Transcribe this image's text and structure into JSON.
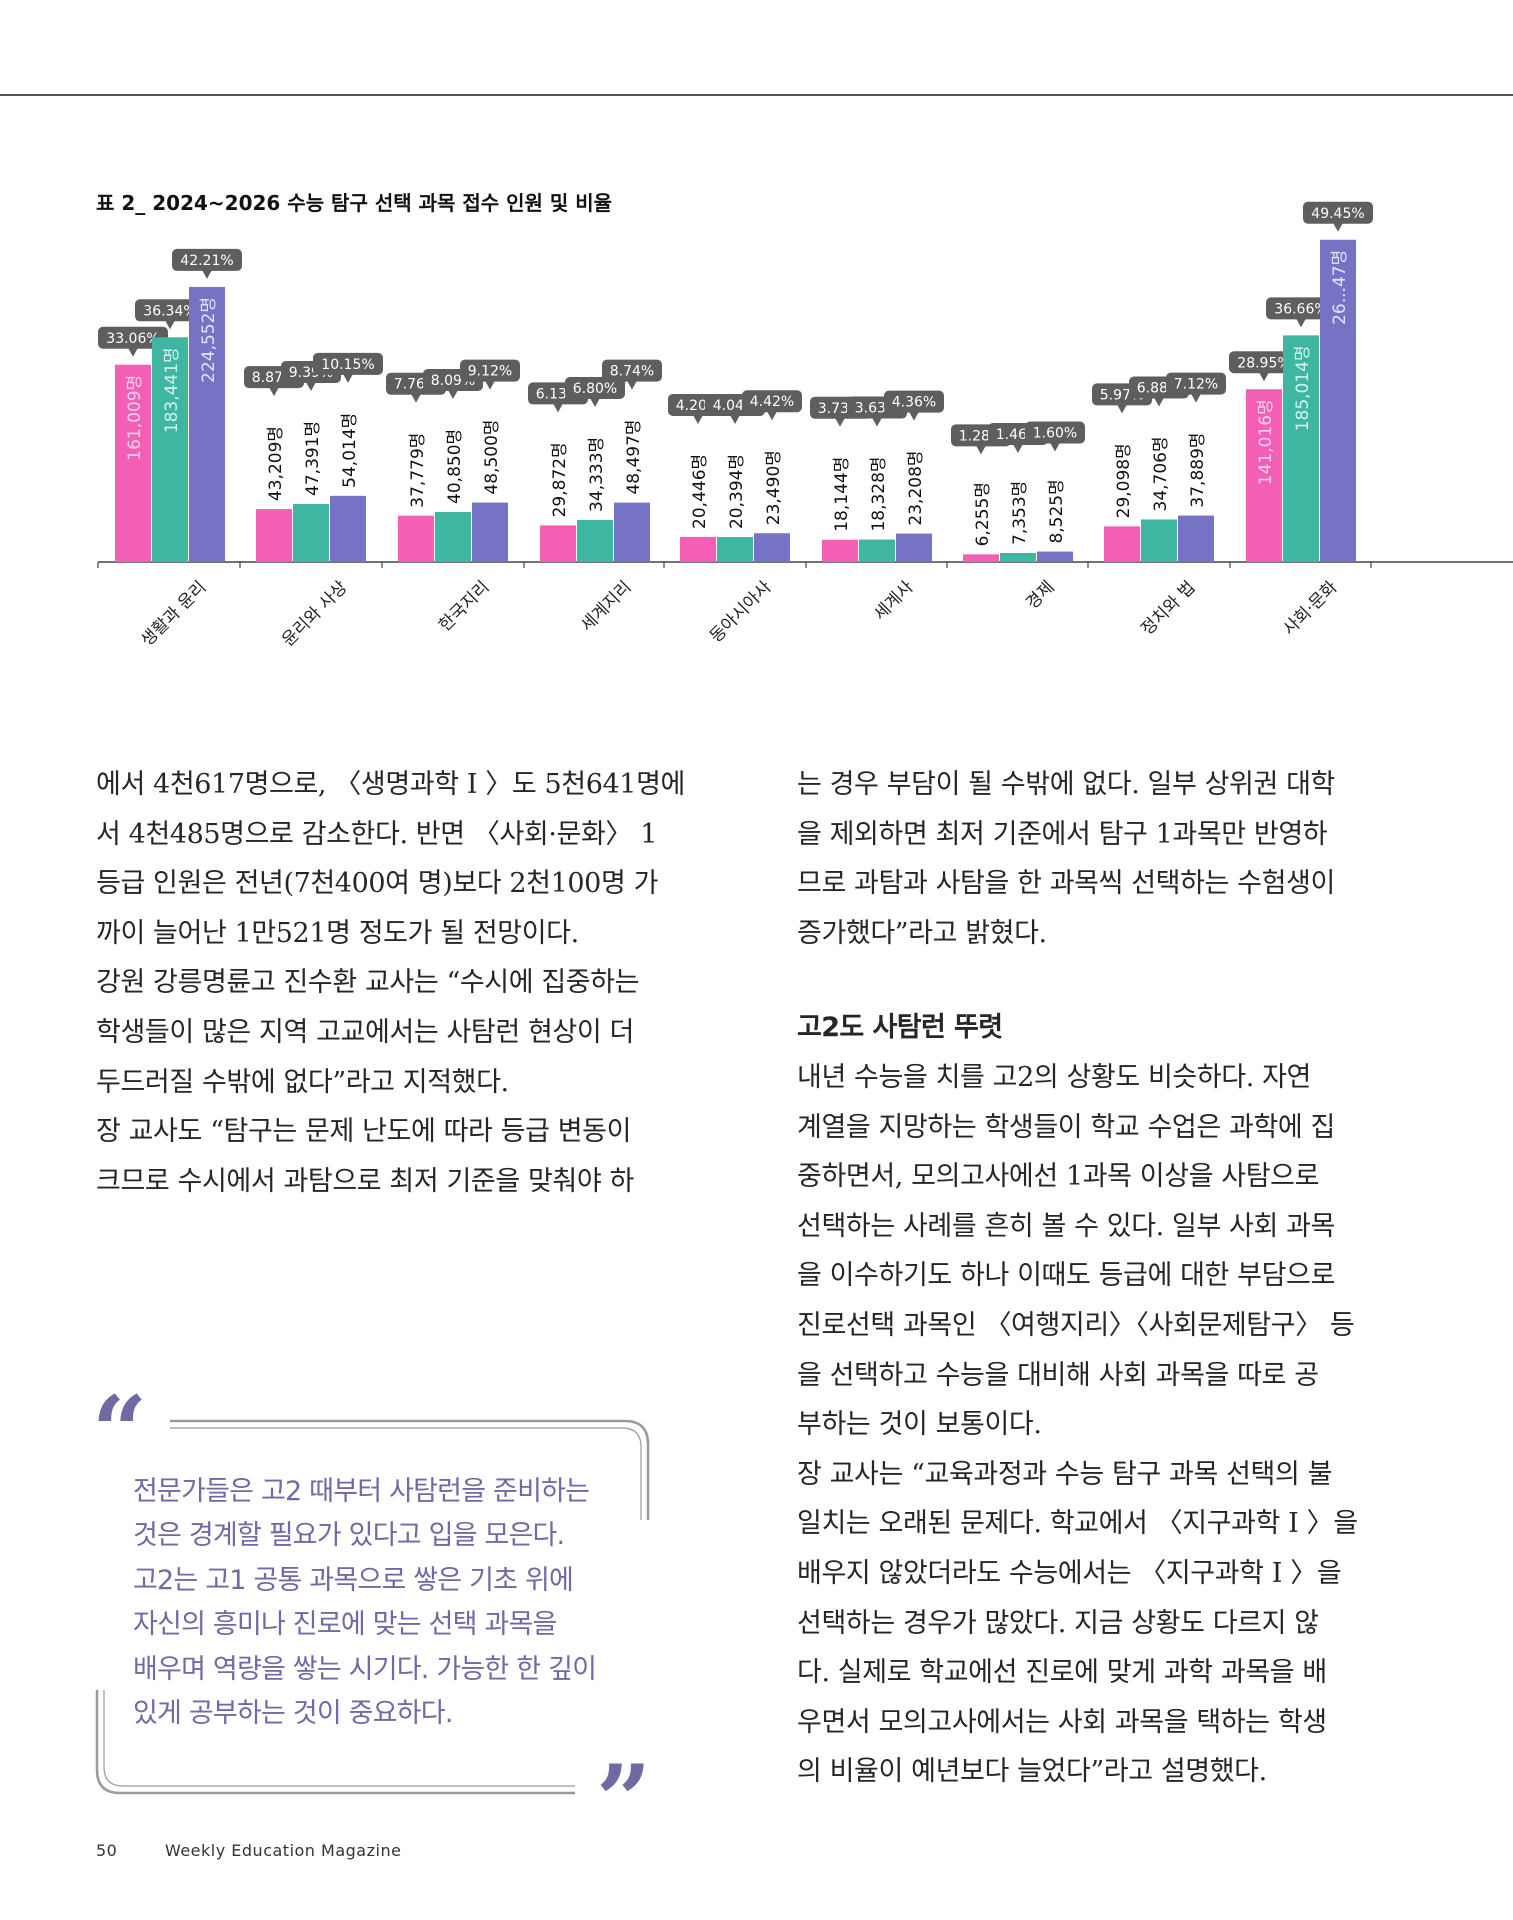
{
  "chart_data": {
    "type": "bar",
    "title": "표 2_ 2024~2026 수능 탐구 선택 과목 접수 인원 및 비율",
    "categories": [
      "생활과 윤리",
      "윤리와 사상",
      "한국지리",
      "세계지리",
      "동아시아사",
      "세계사",
      "경제",
      "정치와 법",
      "사회·문화"
    ],
    "series": [
      {
        "values": [
          161009,
          43209,
          37779,
          29872,
          20446,
          18144,
          6255,
          29098,
          141016
        ],
        "labels": [
          "161,009명",
          "43,209명",
          "37,779명",
          "29,872명",
          "20,446명",
          "18,144명",
          "6,255명",
          "29,098명",
          "141,016명"
        ],
        "pct": [
          "33.06%",
          "8.87%",
          "7.76%",
          "6.13%",
          "4.20%",
          "3.73%",
          "1.28%",
          "5.97%",
          "28.95%"
        ]
      },
      {
        "values": [
          183441,
          47391,
          40850,
          34333,
          20394,
          18328,
          7353,
          34706,
          185014
        ],
        "labels": [
          "183,441명",
          "47,391명",
          "40,850명",
          "34,333명",
          "20,394명",
          "18,328명",
          "7,353명",
          "34,706명",
          "185,014명"
        ],
        "pct": [
          "36.34%",
          "9.39%",
          "8.09%",
          "6.80%",
          "4.04%",
          "3.63%",
          "1.46%",
          "6.88%",
          "36.66%"
        ]
      },
      {
        "values": [
          224552,
          54014,
          48500,
          48497,
          23490,
          23208,
          8525,
          37889,
          263047
        ],
        "labels": [
          "224,552명",
          "54,014명",
          "48,500명",
          "48,497명",
          "23,490명",
          "23,208명",
          "8,525명",
          "37,889명",
          "26...47명"
        ],
        "pct": [
          "42.21%",
          "10.15%",
          "9.12%",
          "8.74%",
          "4.42%",
          "4.36%",
          "1.60%",
          "7.12%",
          "49.45%"
        ]
      }
    ],
    "colors": [
      "#f25fb5",
      "#3fb6a2",
      "#7673c4"
    ],
    "grid": false
  },
  "article": {
    "left_lines": [
      "에서 4천617명으로, 〈생명과학 I 〉도 5천641명에",
      "서 4천485명으로 감소한다. 반면 〈사회·문화〉 1",
      "등급 인원은 전년(7천400여 명)보다 2천100명 가",
      "까이 늘어난 1만521명 정도가 될 전망이다.",
      "강원 강릉명륜고 진수환 교사는 “수시에 집중하는",
      "학생들이 많은 지역 고교에서는 사탐런 현상이 더",
      "두드러질 수밖에 없다”라고 지적했다.",
      "장 교사도 “탐구는 문제 난도에 따라 등급 변동이",
      "크므로 수시에서 과탐으로 최저 기준을 맞춰야 하"
    ],
    "right_lines_top": [
      "는 경우 부담이 될 수밖에 없다. 일부 상위권 대학",
      "을 제외하면 최저 기준에서 탐구 1과목만 반영하",
      "므로 과탐과 사탐을 한 과목씩 선택하는 수험생이",
      "증가했다”라고 밝혔다."
    ],
    "subheading": "고2도 사탐런 뚜렷",
    "right_lines_bottom": [
      "내년 수능을 치를 고2의 상황도 비슷하다. 자연",
      "계열을 지망하는 학생들이 학교 수업은 과학에 집",
      "중하면서, 모의고사에선 1과목 이상을 사탐으로",
      "선택하는 사례를 흔히 볼 수 있다. 일부 사회 과목",
      "을 이수하기도 하나 이때도 등급에 대한 부담으로",
      "진로선택 과목인 〈여행지리〉〈사회문제탐구〉 등",
      "을 선택하고 수능을 대비해 사회 과목을 따로 공",
      "부하는 것이 보통이다.",
      "장 교사는 “교육과정과 수능 탐구 과목 선택의 불",
      "일치는 오래된 문제다. 학교에서 〈지구과학 I 〉을",
      "배우지 않았더라도 수능에서는 〈지구과학 I 〉을",
      "선택하는 경우가 많았다. 지금 상황도 다르지 않",
      "다. 실제로 학교에선 진로에 맞게 과학 과목을 배",
      "우면서 모의고사에서는 사회 과목을 택하는 학생",
      "의 비율이 예년보다 늘었다”라고 설명했다."
    ]
  },
  "pullquote": {
    "open_mark": "“",
    "close_mark": "”",
    "lines": [
      "전문가들은 고2 때부터 사탐런을 준비하는",
      "것은 경계할 필요가 있다고 입을 모은다.",
      "고2는 고1 공통 과목으로 쌓은 기초 위에",
      "자신의 흥미나 진로에 맞는 선택 과목을",
      "배우며 역량을 쌓는 시기다. 가능한 한 깊이",
      "있게 공부하는 것이 중요하다."
    ]
  },
  "footer": {
    "page_number": "50",
    "magazine": "Weekly Education Magazine"
  }
}
